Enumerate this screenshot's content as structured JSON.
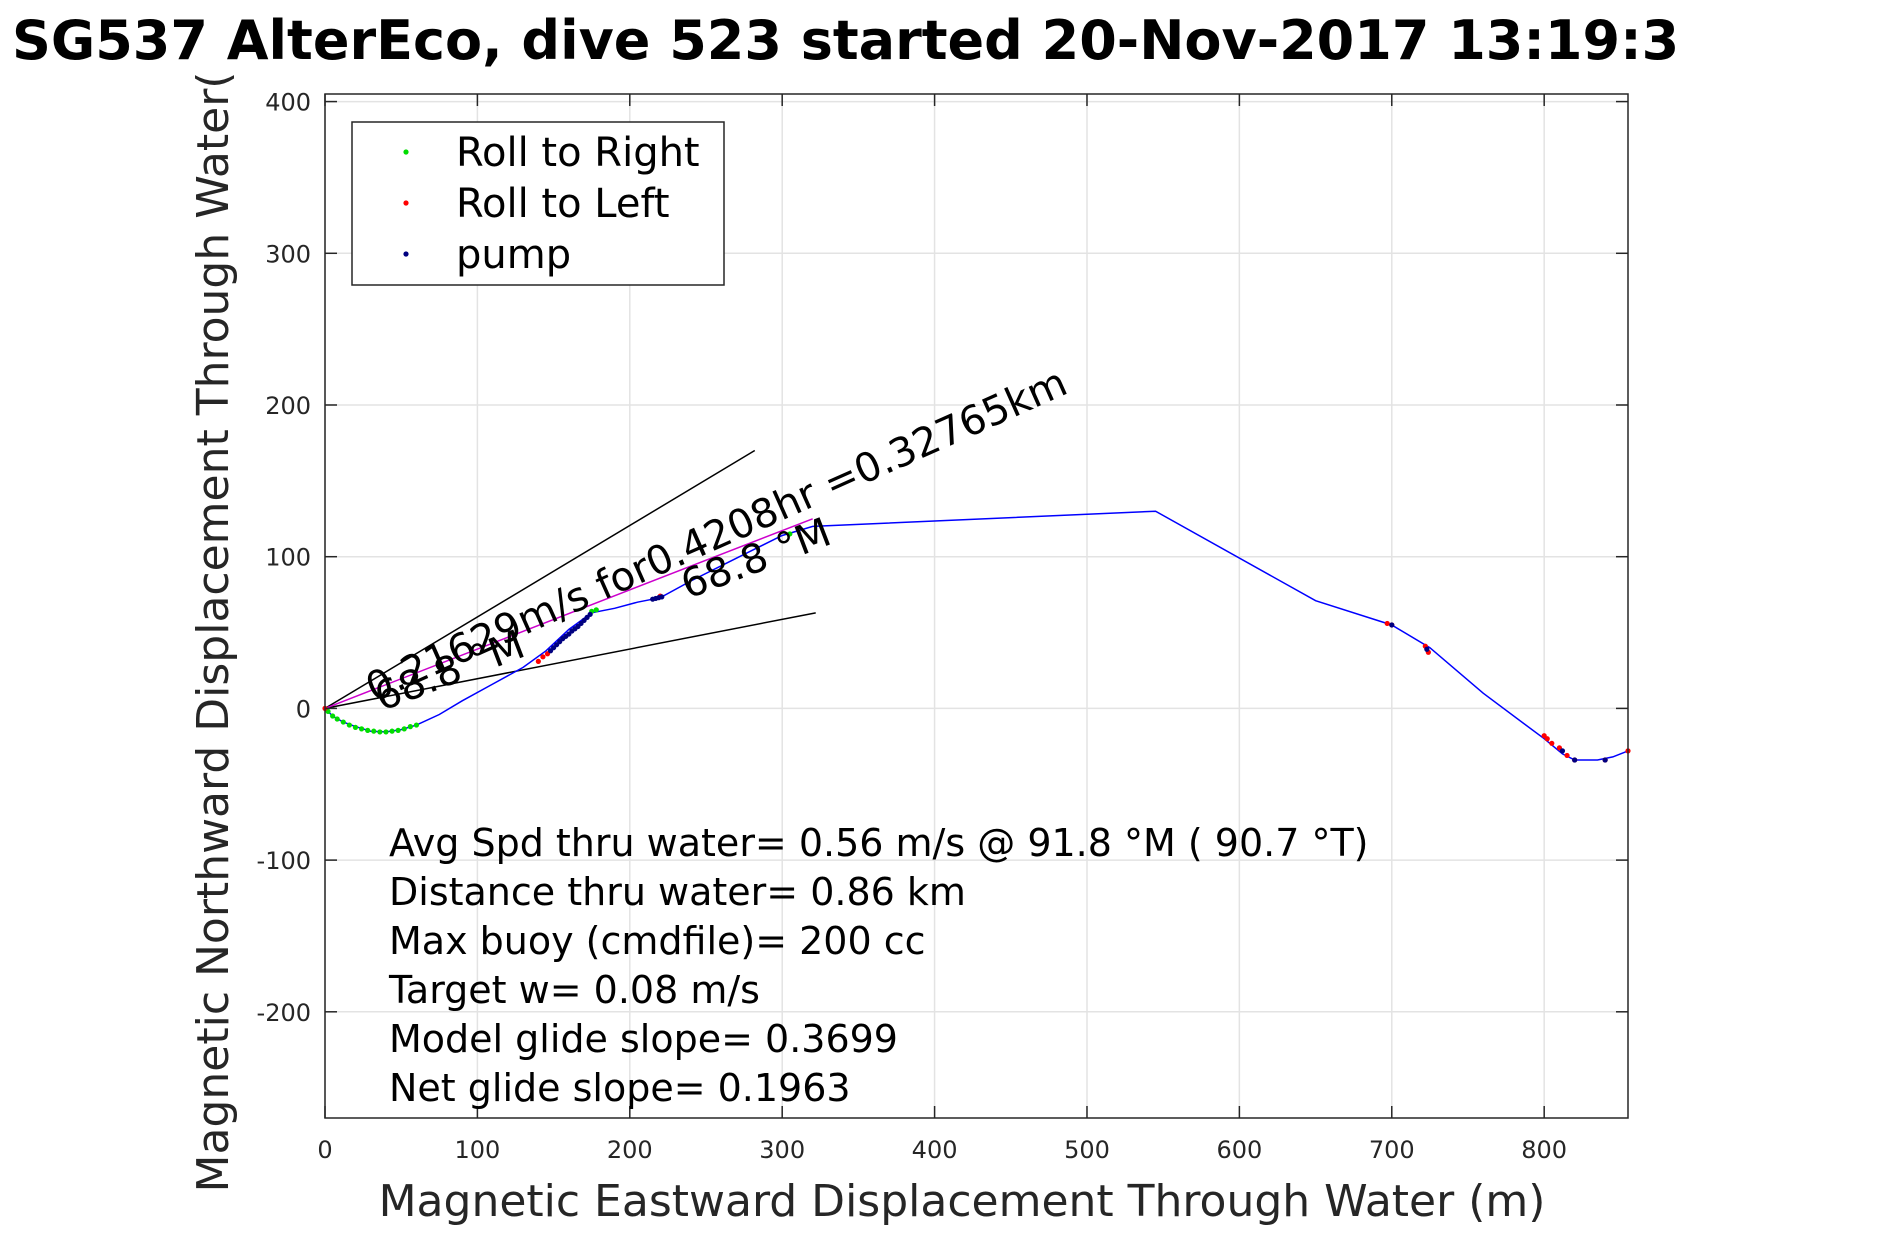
{
  "chart_data": {
    "type": "scatter",
    "title": "SG537 AlterEco, dive 523 started 20-Nov-2017 13:19:3",
    "xlabel": "Magnetic Eastward Displacement Through Water (m)",
    "ylabel": "Magnetic Northward Displacement Through Water(",
    "xlim": [
      0,
      855
    ],
    "ylim": [
      -270,
      405
    ],
    "xticks": [
      0,
      100,
      200,
      300,
      400,
      500,
      600,
      700,
      800
    ],
    "yticks": [
      -200,
      -100,
      0,
      100,
      200,
      300,
      400
    ],
    "grid": true,
    "legend_position": "top-left",
    "colors": {
      "track": "#0000ff",
      "roll_right": "#00dd00",
      "roll_left": "#ff0000",
      "pump": "#000080",
      "heading_line": "#cc00cc",
      "cone": "#000000",
      "grid": "#e3e3e3",
      "axes": "#262626"
    },
    "track": {
      "name": "track",
      "x": [
        0,
        5,
        12,
        20,
        30,
        40,
        50,
        60,
        75,
        90,
        110,
        130,
        145,
        160,
        175,
        190,
        205,
        220,
        240,
        260,
        280,
        300,
        320,
        545,
        650,
        700,
        725,
        760,
        800,
        812,
        820,
        835,
        845,
        855
      ],
      "y": [
        0,
        -5,
        -9,
        -12,
        -15,
        -15.5,
        -14,
        -11,
        -4,
        5,
        16,
        27,
        38,
        52,
        63,
        66,
        70,
        73,
        84,
        94,
        104,
        114,
        120,
        130,
        71,
        55,
        40,
        10,
        -20,
        -30,
        -34,
        -34,
        -32,
        -28
      ]
    },
    "series": [
      {
        "name": "Roll to Right",
        "x": [
          2,
          5,
          8,
          12,
          16,
          20,
          24,
          28,
          32,
          36,
          40,
          44,
          48,
          52,
          56,
          60,
          175,
          178,
          305
        ],
        "y": [
          -2,
          -5,
          -7,
          -9,
          -11,
          -12.5,
          -13.5,
          -14.5,
          -15,
          -15.5,
          -15.5,
          -15,
          -14.5,
          -13.5,
          -12,
          -11,
          64,
          65,
          115
        ]
      },
      {
        "name": "Roll to Left",
        "x": [
          0,
          140,
          143,
          146,
          220,
          697,
          700,
          722,
          724,
          800,
          802,
          805,
          810,
          815,
          820,
          840,
          855
        ],
        "y": [
          0,
          31,
          34,
          36,
          74,
          56,
          55,
          41,
          37,
          -18,
          -20,
          -23,
          -26,
          -31,
          -34,
          -34,
          -28
        ]
      },
      {
        "name": "pump",
        "x": [
          148,
          150,
          152,
          154,
          156,
          158,
          160,
          162,
          164,
          166,
          168,
          170,
          172,
          174,
          215,
          217,
          219,
          221,
          700,
          723,
          812,
          820,
          840
        ],
        "y": [
          38,
          40,
          42,
          44,
          46,
          47.5,
          49,
          51,
          52.5,
          54,
          56,
          58,
          60,
          62,
          72,
          72.5,
          73,
          73.5,
          55,
          39,
          -28,
          -34,
          -34
        ]
      }
    ],
    "heading_line": {
      "x": [
        0,
        320
      ],
      "y": [
        0,
        125
      ]
    },
    "cone_lines": [
      {
        "x": [
          0,
          282
        ],
        "y": [
          0,
          170
        ]
      },
      {
        "x": [
          0,
          322
        ],
        "y": [
          0,
          63
        ]
      }
    ],
    "annotations": [
      {
        "text": "0.21629m/s for0.4208hr =0.32765km",
        "x": 32,
        "y": 4,
        "angle": 24
      },
      {
        "text": "68.8 °M",
        "x": 37,
        "y": -2,
        "angle": 21
      },
      {
        "text": "68.8 °M",
        "x": 238,
        "y": 72,
        "angle": 21
      }
    ],
    "stats": [
      "Avg Spd thru water=  0.56 m/s @  91.8 °M ( 90.7 °T)",
      "Distance thru water=  0.86 km",
      "Max buoy (cmdfile)= 200 cc",
      "Target w= 0.08 m/s",
      "Model glide slope= 0.3699",
      "Net glide slope= 0.1963"
    ],
    "legend": [
      "Roll to Right",
      "Roll to Left",
      "pump"
    ]
  }
}
